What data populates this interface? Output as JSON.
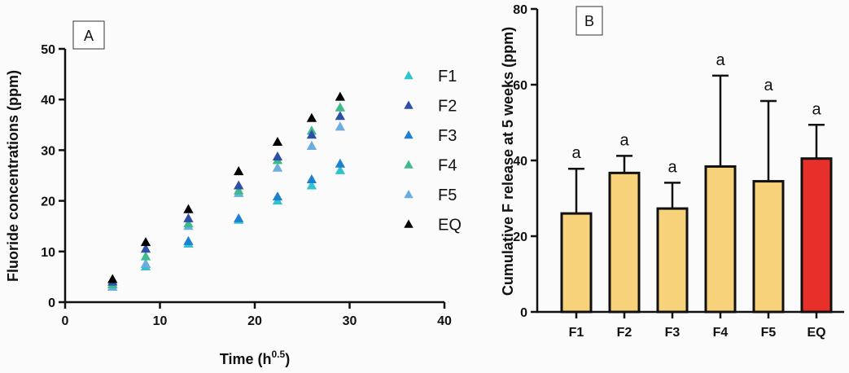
{
  "chart_data": [
    {
      "type": "scatter",
      "panel_label": "A",
      "xlabel": "Time (h",
      "xlabel_sup": "0.5",
      "xlabel_close": ")",
      "ylabel": "Fluoride concentrations (ppm)",
      "xlim": [
        0,
        40
      ],
      "ylim": [
        0,
        50
      ],
      "xticks": [
        0,
        10,
        20,
        30,
        40
      ],
      "yticks": [
        0,
        10,
        20,
        30,
        40,
        50
      ],
      "grid": false,
      "legend_placement": "right",
      "marker": "triangle",
      "x": [
        5,
        8.5,
        13,
        18.3,
        22.4,
        26,
        29
      ],
      "series": [
        {
          "name": "F1",
          "color": "#2ec3cf",
          "values": [
            3,
            7,
            11.5,
            16.2,
            20,
            23,
            26
          ]
        },
        {
          "name": "F2",
          "color": "#2d4fa6",
          "values": [
            4,
            10.5,
            16.5,
            23,
            28.7,
            33,
            36.7
          ]
        },
        {
          "name": "F3",
          "color": "#1e80d1",
          "values": [
            3.5,
            7.5,
            12,
            16.5,
            20.8,
            24.2,
            27.3
          ]
        },
        {
          "name": "F4",
          "color": "#3dba8b",
          "values": [
            3.5,
            9,
            15.5,
            22,
            28,
            33.8,
            38.4
          ]
        },
        {
          "name": "F5",
          "color": "#6aaee0",
          "values": [
            3,
            7.5,
            15,
            21.5,
            26.5,
            30.8,
            34.6
          ]
        },
        {
          "name": "EQ",
          "color": "#000000",
          "values": [
            4.5,
            11.8,
            18.3,
            25.8,
            31.6,
            36.3,
            40.5
          ]
        }
      ]
    },
    {
      "type": "bar",
      "panel_label": "B",
      "ylabel": "Cumulative F release at 5 weeks (ppm)",
      "ylim": [
        0,
        80
      ],
      "yticks": [
        0,
        20,
        40,
        60,
        80
      ],
      "grid": false,
      "categories": [
        "F1",
        "F2",
        "F3",
        "F4",
        "F5",
        "EQ"
      ],
      "values": [
        26,
        36.7,
        27.3,
        38.4,
        34.5,
        40.5
      ],
      "error_upper": [
        37.8,
        41.2,
        34.1,
        62.4,
        55.7,
        49.4
      ],
      "annotations": [
        "a",
        "a",
        "a",
        "a",
        "a",
        "a"
      ],
      "colors": [
        "#f7d27a",
        "#f7d27a",
        "#f7d27a",
        "#f7d27a",
        "#f7d27a",
        "#e8302a"
      ]
    }
  ]
}
